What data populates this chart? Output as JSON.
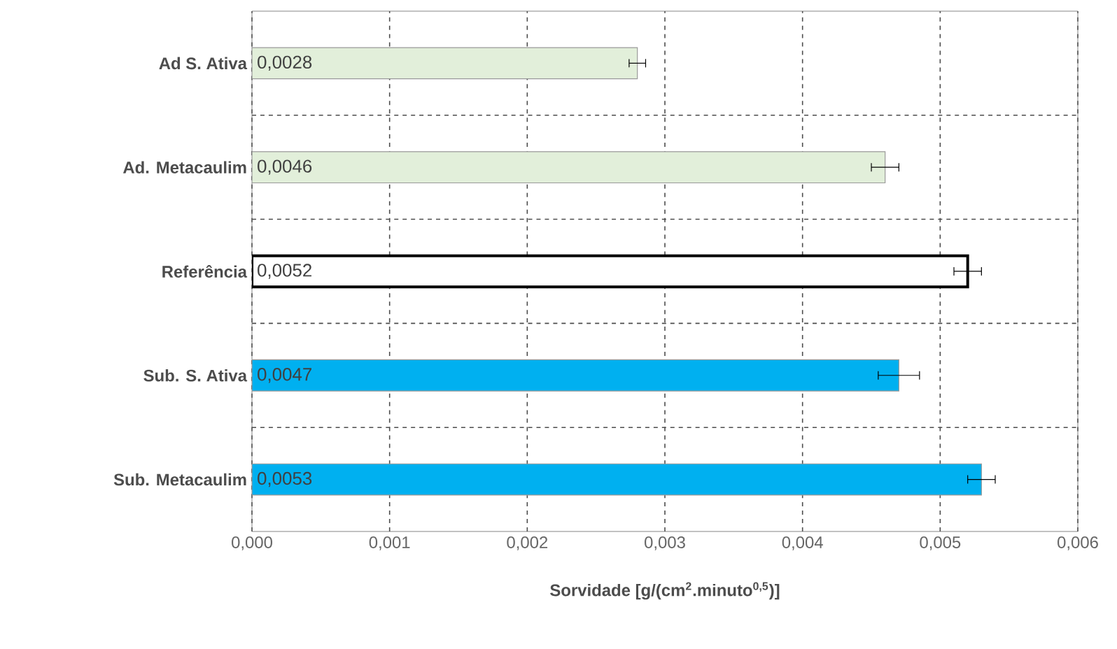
{
  "chart_data": {
    "type": "bar",
    "orientation": "horizontal",
    "xlabel": "Sorvidade [g/(cm$^{2}$.minuto$^{0,5}$)]",
    "categories": [
      "Ad S. Ativa",
      "Ad. Metacaulim",
      "Referência",
      "Sub. S. Ativa",
      "Sub. Metacaulim"
    ],
    "values": [
      0.0028,
      0.0046,
      0.0052,
      0.0047,
      0.0053
    ],
    "errors": [
      6e-05,
      0.0001,
      0.0001,
      0.00015,
      0.0001
    ],
    "value_labels": [
      "0,0028",
      "0,0046",
      "0,0052",
      "0,0047",
      "0,0053"
    ],
    "colors": [
      "#e2efda",
      "#e2efda",
      "#ffffff",
      "#00b0f0",
      "#00b0f0"
    ],
    "xlim": [
      0,
      0.006
    ],
    "xticks": [
      {
        "value": 0,
        "label": "0,000"
      },
      {
        "value": 0.001,
        "label": "0,001"
      },
      {
        "value": 0.002,
        "label": "0,002"
      },
      {
        "value": 0.003,
        "label": "0,003"
      },
      {
        "value": 0.004,
        "label": "0,004"
      },
      {
        "value": 0.005,
        "label": "0,005"
      },
      {
        "value": 0.006,
        "label": "0,006"
      }
    ],
    "grid": true
  }
}
